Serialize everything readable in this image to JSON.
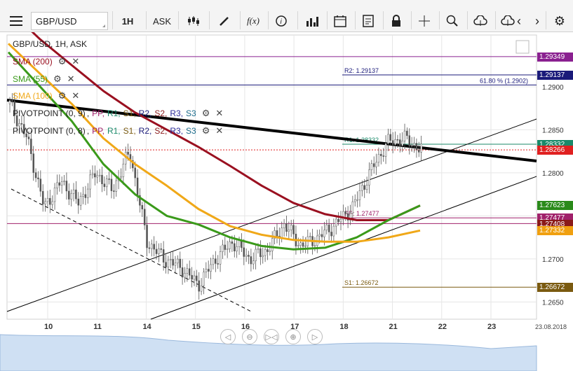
{
  "toolbar": {
    "symbol": "GBP/USD",
    "interval": "1H",
    "price_type": "ASK",
    "icons": [
      "menu-icon",
      "candles-icon",
      "draw-icon",
      "fx-icon",
      "info-icon",
      "bars-icon",
      "calendar-icon",
      "report-icon",
      "lock-icon",
      "crosshair-icon",
      "zoom-icon",
      "upload-icon",
      "download-icon",
      "prev-icon",
      "next-icon",
      "gear-icon"
    ],
    "fx_label": "f(x)"
  },
  "legend": {
    "title": "GBP/USD, 1H, ASK",
    "sma200": "SMA (200)",
    "sma55": "SMA (55)",
    "sma100": "SMA (100)",
    "pivot1": "PIVOTPOINT (0, 9)",
    "pivot2": "PIVOTPOINT (0, 8)",
    "pp_parts": [
      "PP",
      "R1",
      "S1",
      "R2",
      "S2",
      "R3",
      "S3"
    ]
  },
  "chart_data": {
    "type": "line",
    "symbol": "GBP/USD",
    "timeframe": "1H",
    "x_ticks": [
      "10",
      "11",
      "14",
      "15",
      "16",
      "17",
      "18",
      "21",
      "22",
      "23"
    ],
    "x_end_label": "23.08.2018",
    "y_ticks": [
      1.29,
      1.285,
      1.28,
      1.275,
      1.27,
      1.265
    ],
    "ylim": [
      1.263,
      1.296
    ],
    "pivot_levels": [
      {
        "name": "R2",
        "value": 1.29137,
        "label": "R2: 1.29137",
        "color": "#1a1a7a"
      },
      {
        "name": "R1",
        "value": 1.28332,
        "label": "R1: 1.28332",
        "color": "#1a8a6a"
      },
      {
        "name": "PP",
        "value": 1.27477,
        "label": "PP: 1.27477",
        "color": "#a0206a"
      },
      {
        "name": "S1",
        "value": 1.26672,
        "label": "S1: 1.26672",
        "color": "#7a5a10"
      }
    ],
    "fib_label": "61.80 % (1.2902)",
    "price_tags": [
      {
        "value": 1.29349,
        "label": "1.29349",
        "color": "#8a2090"
      },
      {
        "value": 1.29137,
        "label": "1.29137",
        "color": "#1a1a7a"
      },
      {
        "value": 1.28332,
        "label": "1.28332",
        "color": "#1a8a6a"
      },
      {
        "value": 1.28266,
        "label": "1.28266",
        "color": "#e02020"
      },
      {
        "value": 1.27623,
        "label": "1.27623",
        "color": "#2a8a1a"
      },
      {
        "value": 1.27477,
        "label": "1.27477",
        "color": "#a0206a"
      },
      {
        "value": 1.27408,
        "label": "1.27408",
        "color": "#8a1a1a"
      },
      {
        "value": 1.27332,
        "label": "1.27332",
        "color": "#f0a010"
      },
      {
        "value": 1.26672,
        "label": "1.26672",
        "color": "#7a5a10"
      }
    ],
    "series": [
      {
        "name": "SMA (200)",
        "color": "#9a1020",
        "values": [
          1.299,
          1.2955,
          1.2925,
          1.2895,
          1.287,
          1.285,
          1.283,
          1.2808,
          1.2785,
          1.2765,
          1.2752,
          1.2745,
          1.2745,
          1.2762
        ]
      },
      {
        "name": "SMA (55)",
        "color": "#3a9a1a",
        "values": [
          1.294,
          1.29,
          1.286,
          1.281,
          1.2775,
          1.275,
          1.274,
          1.2725,
          1.2715,
          1.2711,
          1.2713,
          1.2725,
          1.2745,
          1.2762
        ]
      },
      {
        "name": "SMA (100)",
        "color": "#f0a818",
        "values": [
          1.295,
          1.2915,
          1.288,
          1.284,
          1.281,
          1.2785,
          1.2758,
          1.2738,
          1.2728,
          1.2722,
          1.272,
          1.272,
          1.2725,
          1.2733
        ]
      }
    ],
    "price_path": [
      1.288,
      1.284,
      1.276,
      1.279,
      1.2765,
      1.28,
      1.278,
      1.2825,
      1.272,
      1.27,
      1.269,
      1.267,
      1.27,
      1.272,
      1.27,
      1.271,
      1.274,
      1.2715,
      1.2725,
      1.274,
      1.276,
      1.28,
      1.2835,
      1.284,
      1.2827
    ]
  }
}
